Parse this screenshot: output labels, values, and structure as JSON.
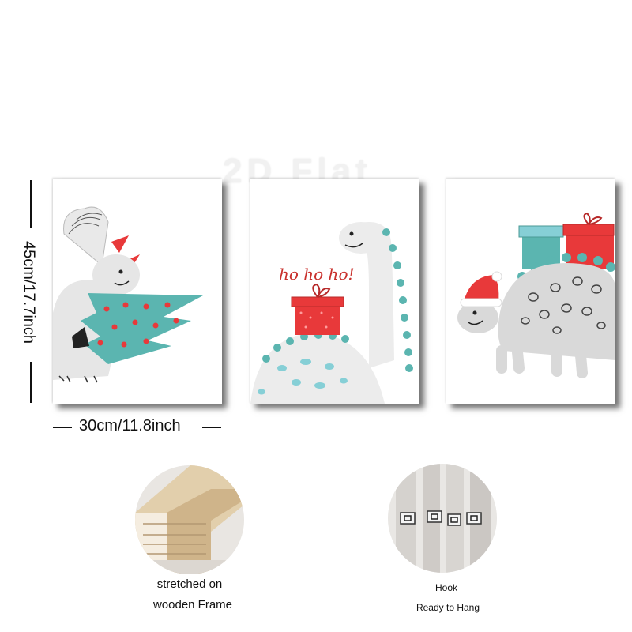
{
  "watermark": "2D Flat",
  "dimensions": {
    "height_label": "45cm/17.7inch",
    "width_label": "30cm/11.8inch"
  },
  "panels": [
    {
      "subject": "triceratops carrying christmas tree"
    },
    {
      "subject": "brachiosaurus with gift",
      "greeting": "ho ho ho!"
    },
    {
      "subject": "stegosaurus with santa hat and presents"
    }
  ],
  "features": {
    "frame": {
      "line1": "stretched on",
      "line2": "wooden Frame"
    },
    "hook": {
      "line1": "Hook",
      "line2": "Ready to Hang"
    }
  },
  "colors": {
    "teal": "#5bb5b0",
    "red": "#e8393a",
    "grey": "#d9d9d9",
    "light": "#ececec"
  }
}
